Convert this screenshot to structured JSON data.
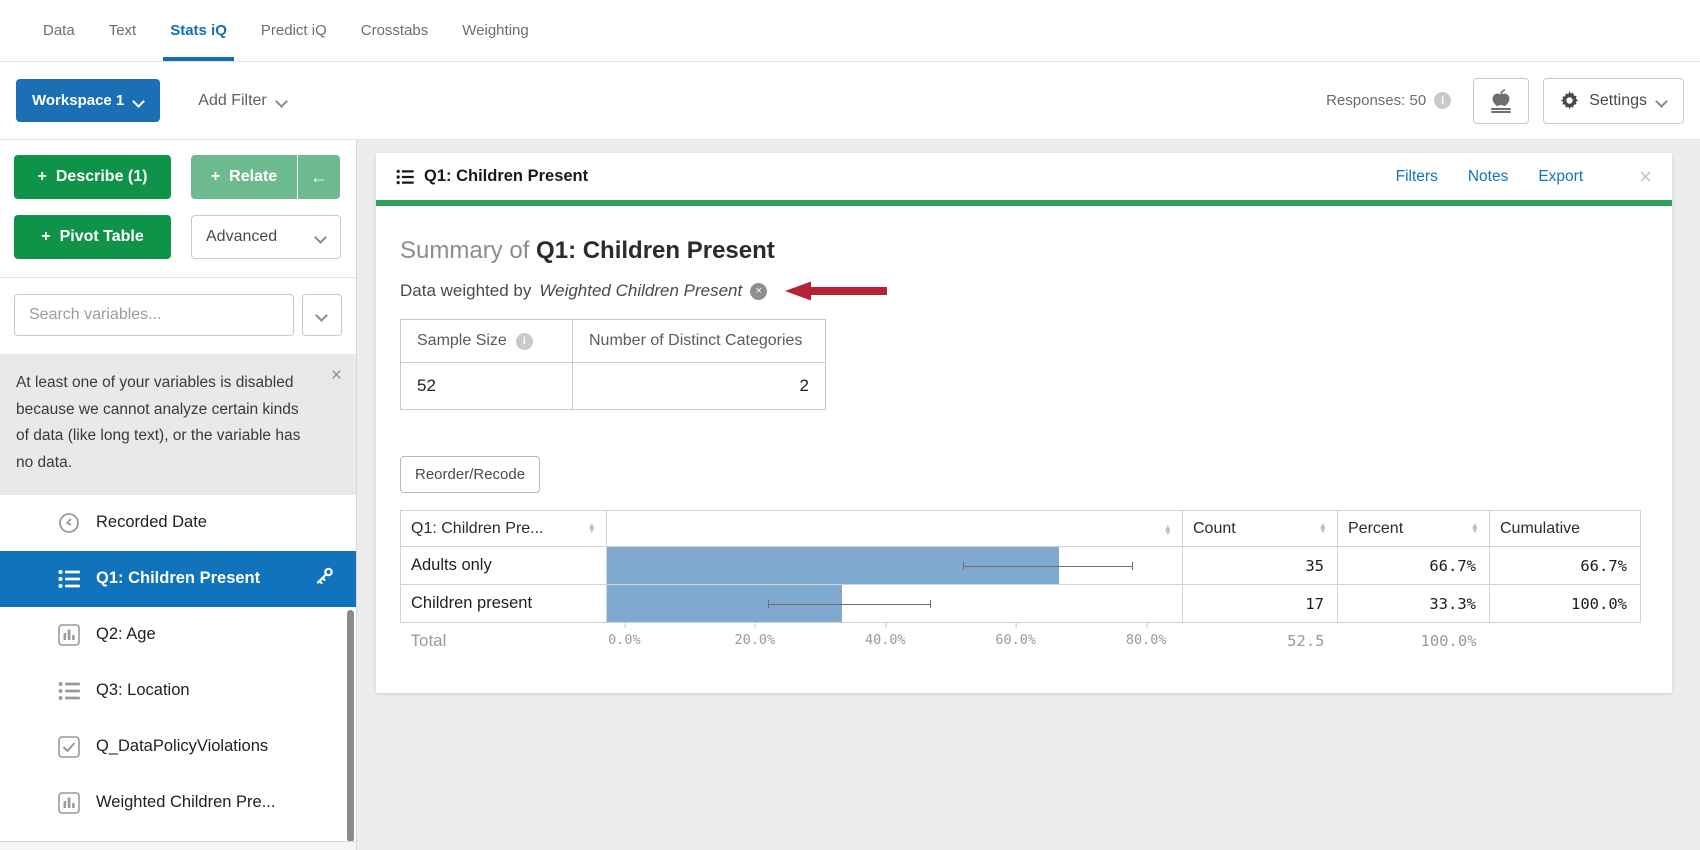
{
  "nav": {
    "tabs": [
      {
        "label": "Data",
        "active": false
      },
      {
        "label": "Text",
        "active": false
      },
      {
        "label": "Stats iQ",
        "active": true
      },
      {
        "label": "Predict iQ",
        "active": false
      },
      {
        "label": "Crosstabs",
        "active": false
      },
      {
        "label": "Weighting",
        "active": false
      }
    ]
  },
  "toolbar": {
    "workspace_label": "Workspace 1",
    "add_filter_label": "Add Filter",
    "responses_label": "Responses: 50",
    "settings_label": "Settings"
  },
  "sidebar": {
    "describe_label": "Describe (1)",
    "relate_label": "Relate",
    "collapse_arrow": "←",
    "pivot_label": "Pivot Table",
    "advanced_label": "Advanced",
    "search_placeholder": "Search variables...",
    "notice_text": "At least one of your variables is disabled because we cannot analyze certain kinds of data (like long text), or the variable has no data.",
    "variables": [
      {
        "label": "Recorded Date",
        "icon": "clock-icon",
        "selected": false
      },
      {
        "label": "Q1: Children Present",
        "icon": "list-icon",
        "selected": true
      },
      {
        "label": "Q2: Age",
        "icon": "bar-chart-icon",
        "selected": false
      },
      {
        "label": "Q3: Location",
        "icon": "list-icon",
        "selected": false
      },
      {
        "label": "Q_DataPolicyViolations",
        "icon": "checkbox-icon",
        "selected": false
      },
      {
        "label": "Weighted Children Pre...",
        "icon": "bar-chart-icon",
        "selected": false
      }
    ]
  },
  "card": {
    "title": "Q1: Children Present",
    "links": {
      "filters": "Filters",
      "notes": "Notes",
      "export": "Export"
    },
    "summary_prefix": "Summary of",
    "summary_title": "Q1: Children Present",
    "weighted_prefix": "Data weighted by",
    "weighted_name": "Weighted Children Present",
    "stats_table": {
      "header_sample_size": "Sample Size",
      "header_categories": "Number of Distinct Categories",
      "sample_size": "52",
      "categories": "2"
    },
    "reorder_label": "Reorder/Recode",
    "table": {
      "col_label": "Q1: Children Pre...",
      "col_count": "Count",
      "col_percent": "Percent",
      "col_cumulative": "Cumulative",
      "rows": [
        {
          "label": "Adults only",
          "count": "35",
          "percent": "66.7%",
          "cumulative": "66.7%",
          "bar_pct": 66.7,
          "err_low": 52,
          "err_high": 78
        },
        {
          "label": "Children present",
          "count": "17",
          "percent": "33.3%",
          "cumulative": "100.0%",
          "bar_pct": 33.3,
          "err_low": 22,
          "err_high": 47
        }
      ],
      "total": {
        "label": "Total",
        "count": "52.5",
        "percent": "100.0%"
      },
      "axis_ticks": [
        "0.0%",
        "20.0%",
        "40.0%",
        "60.0%",
        "80.0%"
      ]
    }
  },
  "icons": {
    "close": "×",
    "sort_up": "▲",
    "sort_down": "▼",
    "info": "i",
    "check": "✓"
  },
  "colors": {
    "accent_blue": "#1270B8",
    "selected_blue": "#1173BC",
    "green": "#0E9349",
    "light_green": "#6CBA8D",
    "card_green_bar": "#33A05F",
    "bar_blue": "#7FA9CE",
    "arrow_red": "#B22335",
    "notice_bg": "#E9E9E9"
  }
}
